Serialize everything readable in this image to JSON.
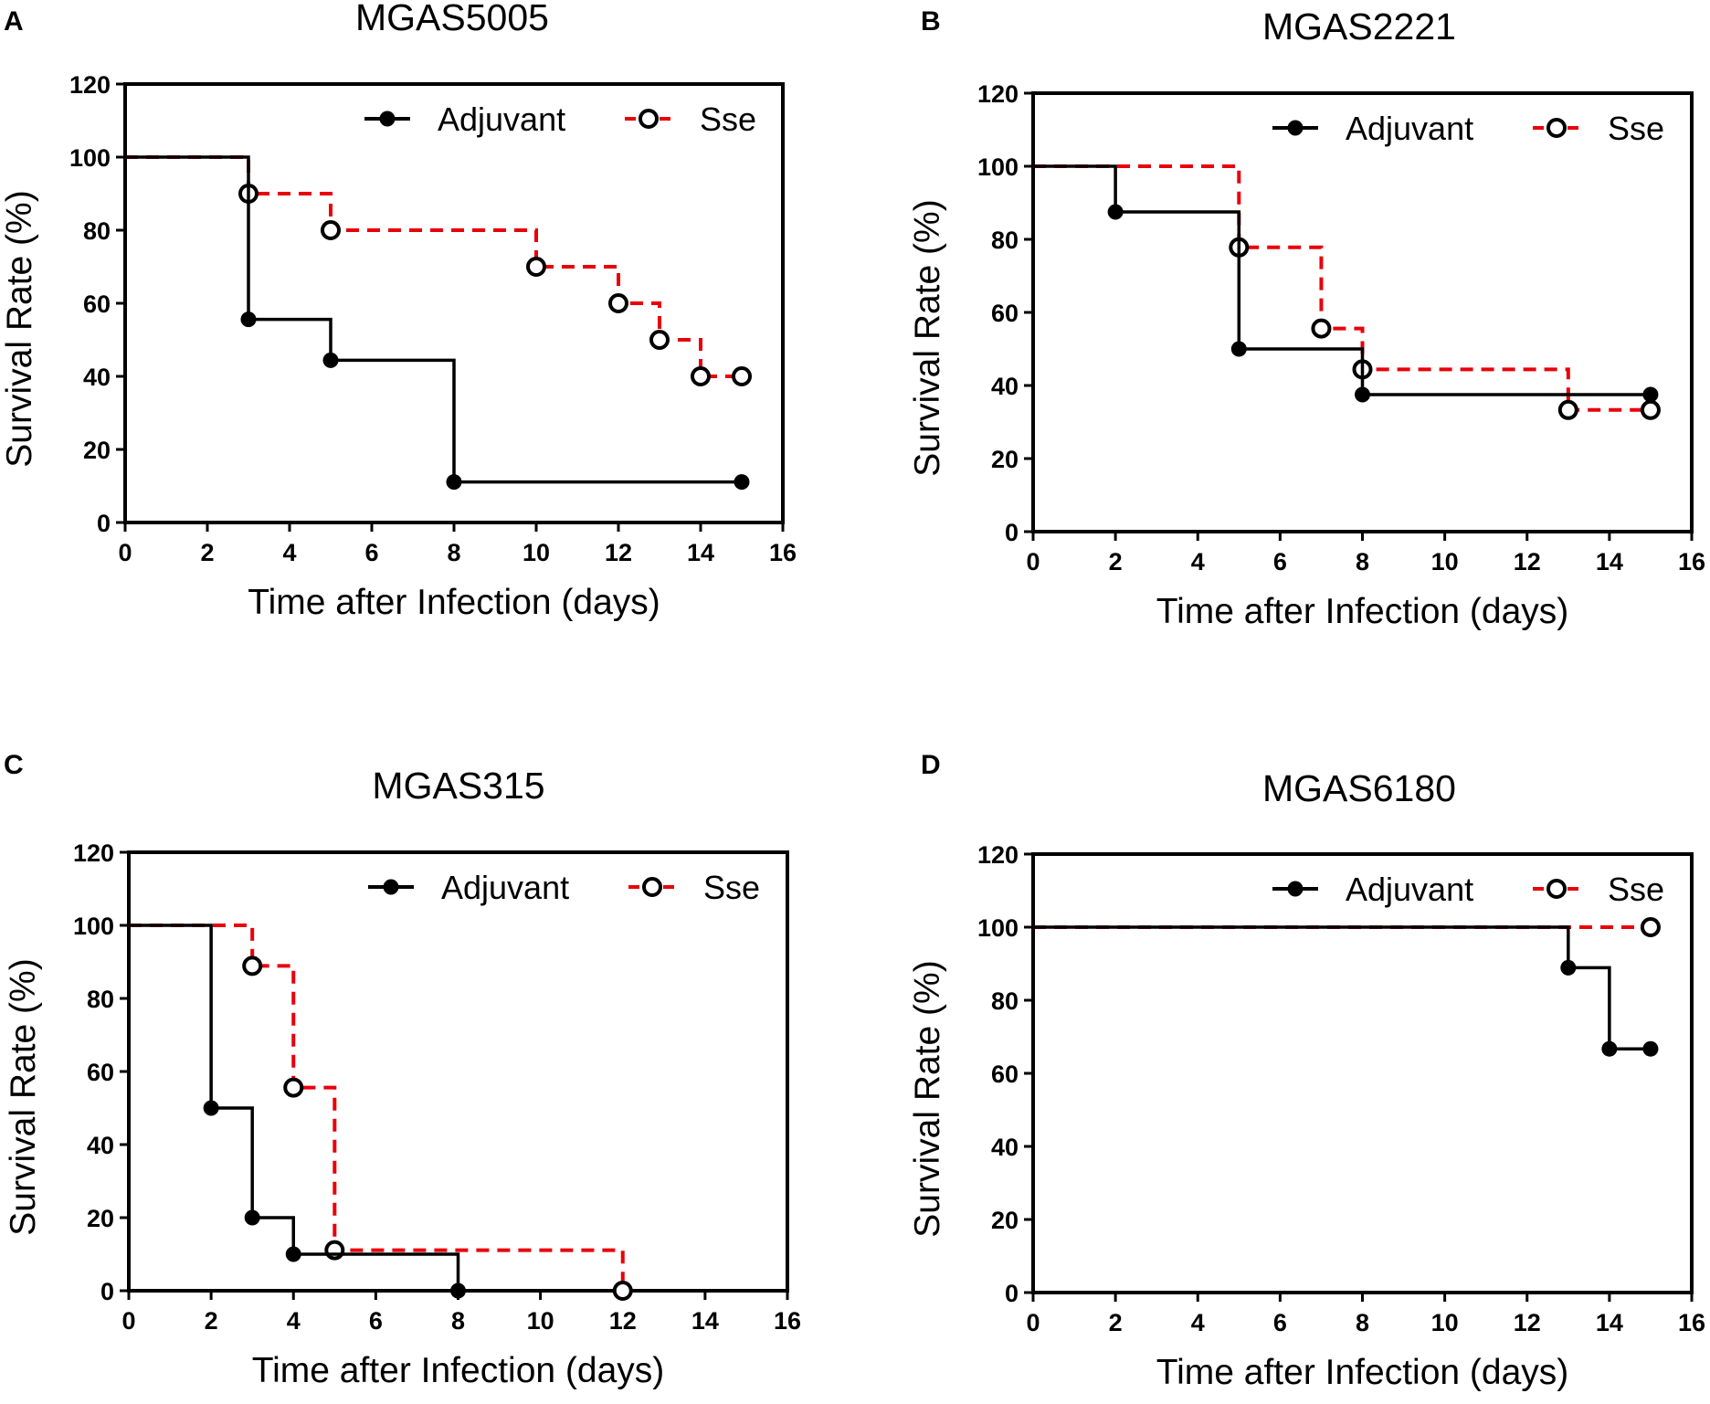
{
  "colors": {
    "adjuvant": "#000000",
    "sse": "#e8000b",
    "axis": "#000000"
  },
  "chart_data": [
    {
      "panel": "A",
      "title": "MGAS5005",
      "type": "line",
      "step": true,
      "xlabel": "Time after Infection (days)",
      "ylabel": "Survival Rate  (%)",
      "xlim": [
        0,
        16
      ],
      "ylim": [
        0,
        120
      ],
      "xticks": [
        0,
        2,
        4,
        6,
        8,
        10,
        12,
        14,
        16
      ],
      "yticks": [
        0,
        20,
        40,
        60,
        80,
        100,
        120
      ],
      "legend": "top-right",
      "series": [
        {
          "name": "Adjuvant",
          "points": [
            [
              0,
              100
            ],
            [
              3,
              55.6
            ],
            [
              5,
              44.4
            ],
            [
              8,
              11.1
            ],
            [
              15,
              11.1
            ]
          ]
        },
        {
          "name": "Sse",
          "points": [
            [
              0,
              100
            ],
            [
              3,
              90
            ],
            [
              5,
              80
            ],
            [
              10,
              70
            ],
            [
              12,
              60
            ],
            [
              13,
              50
            ],
            [
              14,
              40
            ],
            [
              15,
              40
            ]
          ]
        }
      ]
    },
    {
      "panel": "B",
      "title": "MGAS2221",
      "type": "line",
      "step": true,
      "xlabel": "Time after Infection (days)",
      "ylabel": "Survival Rate  (%)",
      "xlim": [
        0,
        16
      ],
      "ylim": [
        0,
        120
      ],
      "xticks": [
        0,
        2,
        4,
        6,
        8,
        10,
        12,
        14,
        16
      ],
      "yticks": [
        0,
        20,
        40,
        60,
        80,
        100,
        120
      ],
      "legend": "top-right",
      "series": [
        {
          "name": "Adjuvant",
          "points": [
            [
              0,
              100
            ],
            [
              2,
              87.5
            ],
            [
              5,
              50
            ],
            [
              8,
              37.5
            ],
            [
              15,
              37.5
            ]
          ]
        },
        {
          "name": "Sse",
          "points": [
            [
              0,
              100
            ],
            [
              5,
              77.8
            ],
            [
              7,
              55.6
            ],
            [
              8,
              44.4
            ],
            [
              13,
              33.3
            ],
            [
              15,
              33.3
            ]
          ]
        }
      ]
    },
    {
      "panel": "C",
      "title": "MGAS315",
      "type": "line",
      "step": true,
      "xlabel": "Time after Infection (days)",
      "ylabel": "Survival Rate  (%)",
      "xlim": [
        0,
        16
      ],
      "ylim": [
        0,
        120
      ],
      "xticks": [
        0,
        2,
        4,
        6,
        8,
        10,
        12,
        14,
        16
      ],
      "yticks": [
        0,
        20,
        40,
        60,
        80,
        100,
        120
      ],
      "legend": "top-right",
      "series": [
        {
          "name": "Adjuvant",
          "points": [
            [
              0,
              100
            ],
            [
              2,
              50
            ],
            [
              3,
              20
            ],
            [
              4,
              10
            ],
            [
              8,
              0
            ]
          ]
        },
        {
          "name": "Sse",
          "points": [
            [
              0,
              100
            ],
            [
              3,
              88.9
            ],
            [
              4,
              55.6
            ],
            [
              5,
              11.1
            ],
            [
              12,
              0
            ]
          ]
        }
      ]
    },
    {
      "panel": "D",
      "title": "MGAS6180",
      "type": "line",
      "step": true,
      "xlabel": "Time after Infection (days)",
      "ylabel": "Survival Rate  (%)",
      "xlim": [
        0,
        16
      ],
      "ylim": [
        0,
        120
      ],
      "xticks": [
        0,
        2,
        4,
        6,
        8,
        10,
        12,
        14,
        16
      ],
      "yticks": [
        0,
        20,
        40,
        60,
        80,
        100,
        120
      ],
      "legend": "top-right",
      "series": [
        {
          "name": "Adjuvant",
          "points": [
            [
              0,
              100
            ],
            [
              13,
              88.9
            ],
            [
              14,
              66.7
            ],
            [
              15,
              66.7
            ]
          ]
        },
        {
          "name": "Sse",
          "points": [
            [
              0,
              100
            ],
            [
              15,
              100
            ]
          ]
        }
      ]
    }
  ]
}
